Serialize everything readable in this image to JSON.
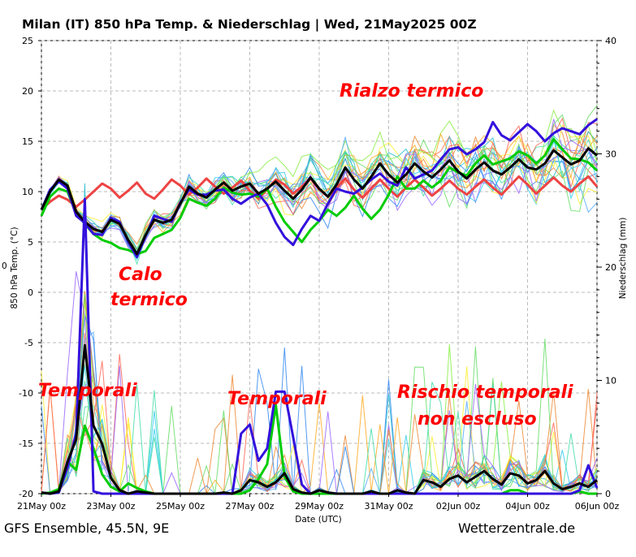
{
  "title": "Milan  (IT)  850 hPa Temp. & Niederschlag | Wed, 21May2025 00Z",
  "footer_left": "GFS Ensemble, 45.5N, 9E",
  "footer_right": "Wetterzentrale.de",
  "annotations": {
    "rialzo": "Rialzo termico",
    "calo_1": "Calo",
    "calo_2": "termico",
    "temporali_1": "Temporali",
    "temporali_2": "Temporali",
    "rischio_1": "Rischio temporali",
    "rischio_2": "non escluso"
  },
  "colors": {
    "annotation": "#ff0000",
    "mean": "#000000",
    "operational": "#3311dd",
    "control": "#00cc00",
    "climate": "#ee4444",
    "grid": "#bbbbbb"
  },
  "chart_data": {
    "type": "line",
    "xlabel": "Date (UTC)",
    "ylabel_left": "850 hPa Temp. (°C)",
    "ylabel_left_prefix": "0",
    "ylabel_right": "Niederschlag (mm)",
    "x_start": "2025-05-21T00:00Z",
    "x_step_hours": 6,
    "xlim": [
      "21May 00z",
      "06Jun 00z"
    ],
    "ylim_left": [
      -20,
      25
    ],
    "ylim_right": [
      0,
      40
    ],
    "grid": true,
    "xticks": [
      "21May 00z",
      "23May 00z",
      "25May 00z",
      "27May 00z",
      "29May 00z",
      "31May 00z",
      "02Jun 00z",
      "04Jun 00z",
      "06Jun 00z"
    ],
    "yticks_left": [
      "25",
      "20",
      "15",
      "10",
      "5",
      "0",
      "-5",
      "-10",
      "-15",
      "-20"
    ],
    "yticks_right": [
      "40",
      "30",
      "20",
      "10",
      "0"
    ],
    "temperature_series": [
      {
        "role": "mean",
        "color": "#000000",
        "values": [
          8.2,
          10.0,
          11.2,
          10.6,
          8.0,
          7.0,
          6.3,
          6.0,
          7.2,
          6.8,
          5.2,
          3.8,
          5.7,
          7.2,
          6.9,
          7.2,
          8.8,
          10.5,
          9.8,
          9.4,
          10.2,
          10.9,
          10.1,
          10.5,
          10.8,
          9.8,
          10.3,
          11.0,
          10.1,
          9.3,
          10.2,
          11.4,
          10.3,
          9.5,
          10.7,
          12.4,
          11.2,
          10.3,
          11.5,
          12.8,
          11.7,
          10.9,
          11.7,
          12.8,
          12.0,
          11.4,
          12.2,
          13.1,
          12.0,
          11.3,
          12.2,
          12.9,
          12.1,
          11.7,
          12.4,
          13.2,
          12.4,
          12.2,
          12.8,
          14.1,
          13.4,
          12.7,
          13.1,
          14.3,
          13.6
        ]
      },
      {
        "role": "operational",
        "color": "#3311dd",
        "values": [
          8.2,
          10.2,
          11.0,
          10.3,
          7.6,
          6.9,
          5.8,
          5.7,
          7.4,
          7.0,
          5.0,
          3.5,
          5.6,
          7.6,
          7.3,
          7.0,
          8.9,
          10.2,
          9.7,
          9.7,
          10.1,
          10.2,
          9.3,
          8.8,
          9.4,
          9.8,
          8.7,
          6.9,
          5.5,
          4.7,
          6.3,
          7.6,
          7.1,
          8.8,
          10.3,
          10.0,
          9.8,
          10.4,
          11.2,
          11.8,
          11.0,
          10.6,
          12.4,
          11.3,
          11.7,
          12.1,
          13.2,
          14.2,
          14.4,
          13.7,
          14.2,
          14.9,
          16.9,
          15.6,
          15.1,
          15.9,
          16.7,
          16.0,
          15.0,
          15.8,
          16.3,
          16.0,
          15.7,
          16.6,
          17.2
        ]
      },
      {
        "role": "control",
        "color": "#00cc00",
        "values": [
          7.6,
          9.5,
          10.3,
          10.0,
          7.8,
          6.8,
          5.8,
          5.2,
          4.9,
          4.4,
          4.2,
          3.8,
          4.1,
          5.4,
          5.8,
          6.2,
          7.4,
          9.3,
          8.9,
          8.6,
          9.3,
          10.4,
          9.9,
          9.7,
          9.8,
          9.5,
          10.3,
          8.5,
          7.0,
          6.0,
          5.0,
          6.2,
          7.1,
          8.2,
          7.6,
          8.4,
          9.6,
          8.3,
          7.3,
          8.2,
          9.7,
          11.5,
          10.3,
          10.3,
          11.1,
          10.4,
          11.1,
          12.4,
          11.9,
          11.6,
          12.8,
          13.6,
          12.7,
          13.0,
          13.3,
          14.0,
          13.6,
          12.8,
          13.6,
          15.2,
          14.2,
          13.3,
          13.2,
          12.9,
          12.1
        ]
      },
      {
        "role": "climate",
        "color": "#ee4444",
        "values": [
          8.2,
          9.0,
          9.6,
          9.2,
          8.5,
          9.2,
          10.0,
          10.8,
          10.3,
          9.4,
          10.1,
          10.9,
          9.8,
          9.3,
          10.2,
          11.2,
          10.6,
          9.7,
          10.4,
          11.3,
          10.5,
          9.8,
          10.4,
          11.1,
          10.1,
          9.3,
          10.2,
          11.2,
          10.7,
          9.8,
          10.5,
          11.3,
          10.2,
          9.5,
          10.4,
          11.3,
          10.2,
          9.4,
          10.3,
          11.2,
          10.3,
          9.5,
          10.4,
          11.2,
          10.4,
          9.6,
          10.3,
          11.1,
          10.3,
          9.7,
          10.5,
          11.2,
          10.4,
          9.7,
          10.6,
          11.5,
          10.7,
          9.8,
          10.6,
          11.4,
          10.6,
          10.0,
          10.8,
          11.5,
          10.5
        ]
      }
    ],
    "precipitation_series": [
      {
        "role": "mean",
        "color": "#000000",
        "values": [
          0.1,
          0.0,
          0.2,
          2.8,
          4.8,
          13.1,
          6.0,
          4.4,
          1.4,
          0.3,
          0.0,
          0.2,
          0.1,
          0.0,
          0.0,
          0.0,
          0.0,
          0.0,
          0.0,
          0.0,
          0.0,
          0.1,
          0.0,
          0.3,
          1.2,
          1.0,
          0.6,
          1.0,
          1.8,
          0.4,
          0.1,
          0.0,
          0.3,
          0.1,
          0.0,
          0.0,
          0.0,
          0.0,
          0.2,
          0.0,
          0.0,
          0.3,
          0.1,
          0.0,
          1.2,
          1.0,
          0.6,
          1.3,
          1.6,
          1.0,
          1.5,
          2.0,
          1.3,
          0.8,
          1.8,
          1.6,
          0.9,
          1.2,
          2.0,
          0.9,
          0.4,
          0.6,
          0.9,
          0.6,
          1.2
        ]
      },
      {
        "role": "operational",
        "color": "#3311dd",
        "values": [
          0.1,
          0.0,
          0.1,
          2.3,
          5.3,
          26.0,
          0.2,
          0.0,
          0.0,
          0.0,
          0.0,
          0.0,
          0.0,
          0.0,
          0.0,
          0.0,
          0.0,
          0.0,
          0.0,
          0.0,
          0.0,
          0.0,
          0.0,
          5.3,
          6.1,
          2.9,
          4.0,
          9.0,
          9.0,
          5.0,
          0.8,
          0.0,
          0.3,
          0.1,
          0.0,
          0.0,
          0.0,
          0.0,
          0.0,
          0.0,
          0.0,
          0.0,
          0.0,
          0.0,
          0.0,
          0.0,
          0.0,
          0.0,
          0.0,
          0.0,
          0.0,
          0.0,
          0.0,
          0.0,
          0.0,
          0.0,
          0.0,
          0.0,
          0.0,
          0.0,
          0.0,
          0.0,
          0.3,
          2.5,
          0.5
        ]
      },
      {
        "role": "control",
        "color": "#00cc00",
        "values": [
          0.0,
          0.1,
          0.4,
          2.8,
          2.1,
          6.0,
          4.0,
          1.7,
          0.6,
          0.2,
          0.9,
          0.5,
          0.2,
          0.0,
          0.0,
          0.0,
          0.0,
          0.0,
          0.0,
          0.0,
          0.0,
          0.0,
          0.0,
          0.0,
          0.3,
          1.3,
          2.6,
          7.8,
          1.5,
          0.2,
          0.0,
          0.0,
          0.0,
          0.0,
          0.0,
          0.0,
          0.0,
          0.0,
          0.0,
          0.0,
          0.0,
          0.0,
          0.0,
          0.0,
          0.0,
          0.0,
          0.0,
          0.0,
          0.0,
          0.0,
          0.0,
          0.0,
          0.0,
          0.0,
          0.3,
          0.3,
          0.0,
          0.0,
          0.0,
          0.0,
          0.0,
          0.0,
          0.2,
          0.0,
          0.0
        ]
      }
    ]
  }
}
